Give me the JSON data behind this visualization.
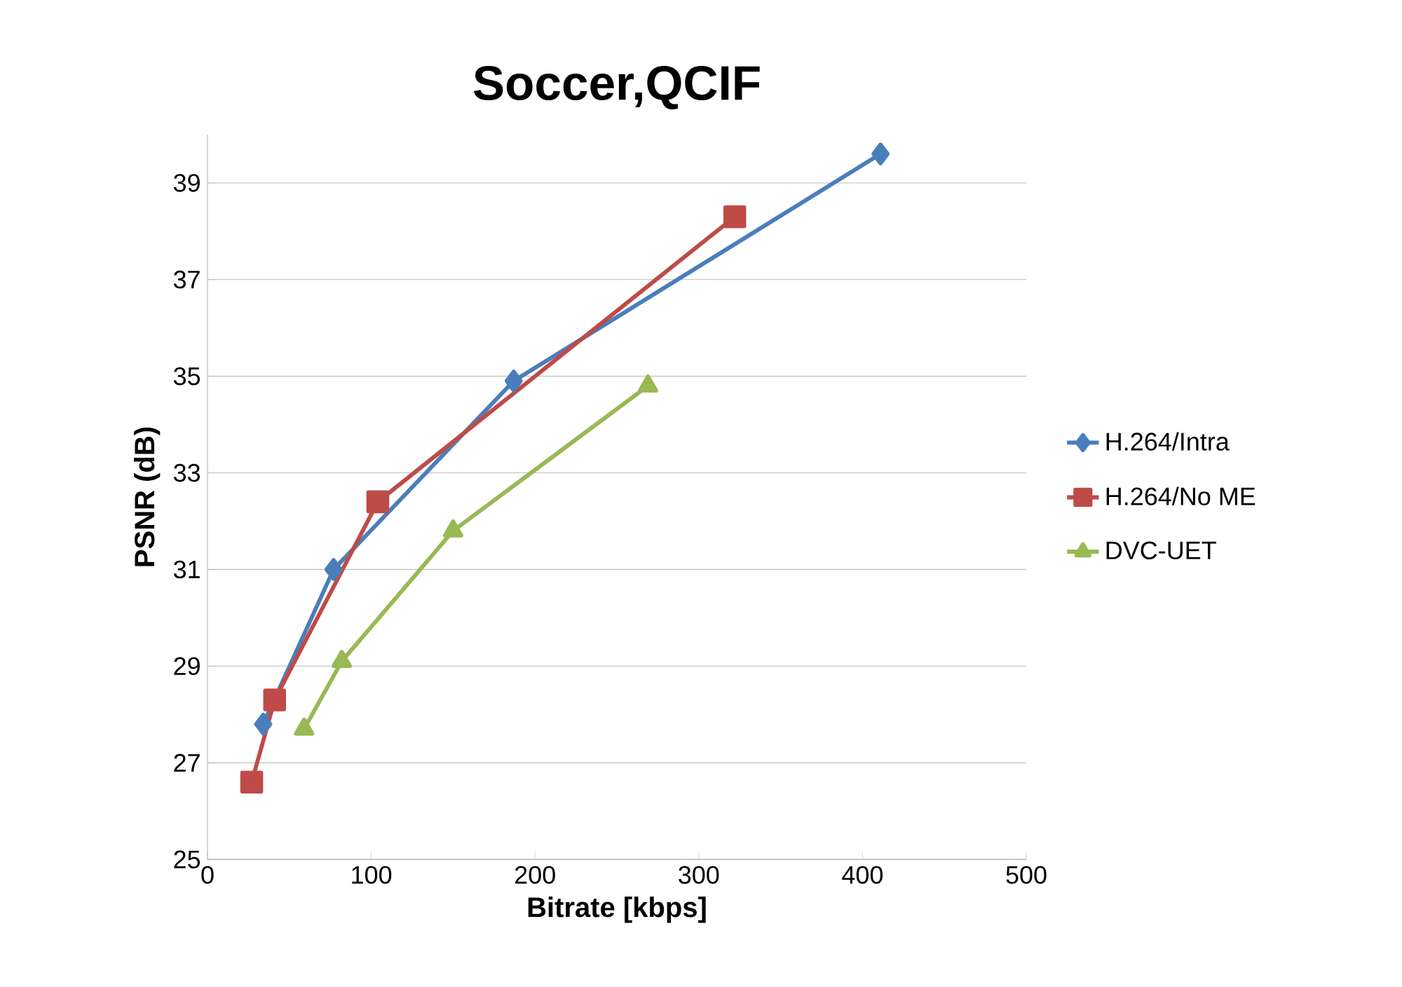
{
  "chart_data": {
    "type": "line",
    "title": "Soccer,QCIF",
    "xlabel": "Bitrate [kbps]",
    "ylabel": "PSNR (dB)",
    "xlim": [
      0,
      500
    ],
    "xticks": [
      0,
      100,
      200,
      300,
      400,
      500
    ],
    "ylim": [
      25,
      40
    ],
    "yticks": [
      25,
      27,
      29,
      31,
      33,
      35,
      37,
      39
    ],
    "grid": "y",
    "legend": "right",
    "line_style": "solid",
    "series": [
      {
        "name": "H.264/Intra",
        "color": "#4a7ebb",
        "marker": "diamond",
        "x": [
          34,
          77,
          187,
          411
        ],
        "values": [
          27.8,
          31.0,
          34.9,
          39.6
        ]
      },
      {
        "name": "H.264/No ME",
        "color": "#be4b48",
        "marker": "square",
        "x": [
          27,
          41,
          104,
          322
        ],
        "values": [
          26.6,
          28.3,
          32.4,
          38.3
        ]
      },
      {
        "name": "DVC-UET",
        "color": "#98b954",
        "marker": "triangle",
        "x": [
          59,
          82,
          150,
          269
        ],
        "values": [
          27.7,
          29.1,
          31.8,
          34.8
        ]
      }
    ]
  }
}
